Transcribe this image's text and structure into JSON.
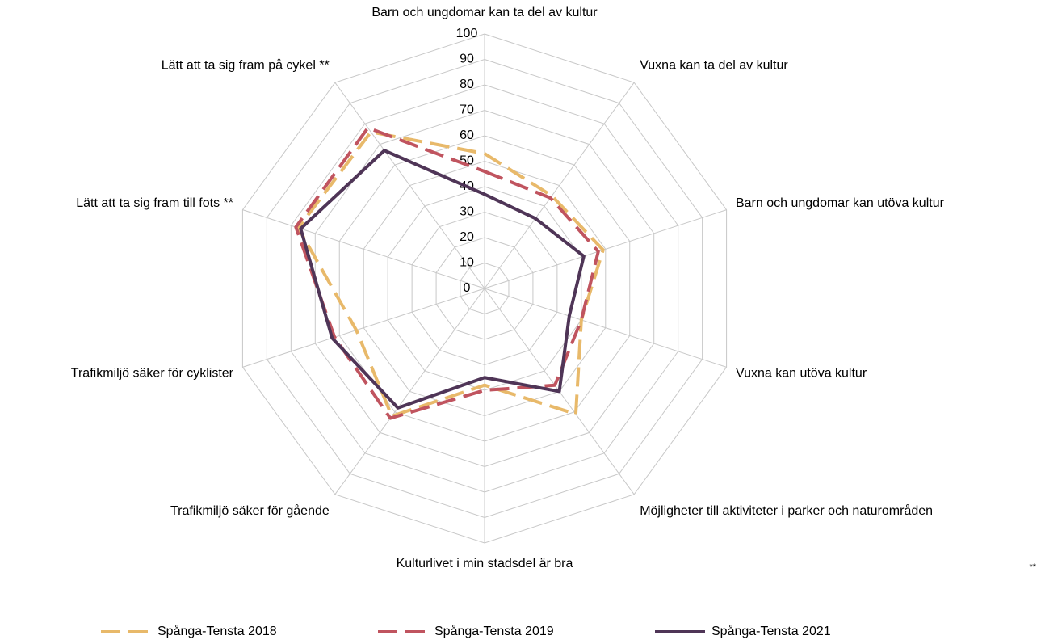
{
  "chart_data": {
    "type": "radar",
    "categories": [
      "Barn och ungdomar kan ta del av kultur",
      "Vuxna kan ta del av kultur",
      "Barn och ungdomar kan utöva kultur",
      "Vuxna kan utöva kultur",
      "Möjligheter till aktiviteter i parker och naturområden",
      "Kulturlivet i min stadsdel är bra",
      "Trafikmiljö säker för gående",
      "Trafikmiljö säker för cyklister",
      "Lätt att ta sig fram till fots **",
      "Lätt att ta sig fram på cykel **"
    ],
    "series": [
      {
        "name": "Spånga-Tensta 2018",
        "color": "#e8b96a",
        "style": "dashed",
        "values": [
          53,
          45,
          49,
          40,
          61,
          38,
          62,
          53,
          77,
          76
        ]
      },
      {
        "name": "Spånga-Tensta 2019",
        "color": "#c0545f",
        "style": "dashed",
        "values": [
          46,
          44,
          47,
          40,
          47,
          40,
          63,
          62,
          78,
          78
        ]
      },
      {
        "name": "Spånga-Tensta 2021",
        "color": "#4f3557",
        "style": "solid",
        "values": [
          37,
          34,
          41,
          35,
          50,
          35,
          58,
          63,
          76,
          67
        ]
      }
    ],
    "ylim": [
      0,
      100
    ],
    "yticks": [
      0,
      10,
      20,
      30,
      40,
      50,
      60,
      70,
      80,
      90,
      100
    ],
    "grid": true,
    "annotation": "**"
  }
}
